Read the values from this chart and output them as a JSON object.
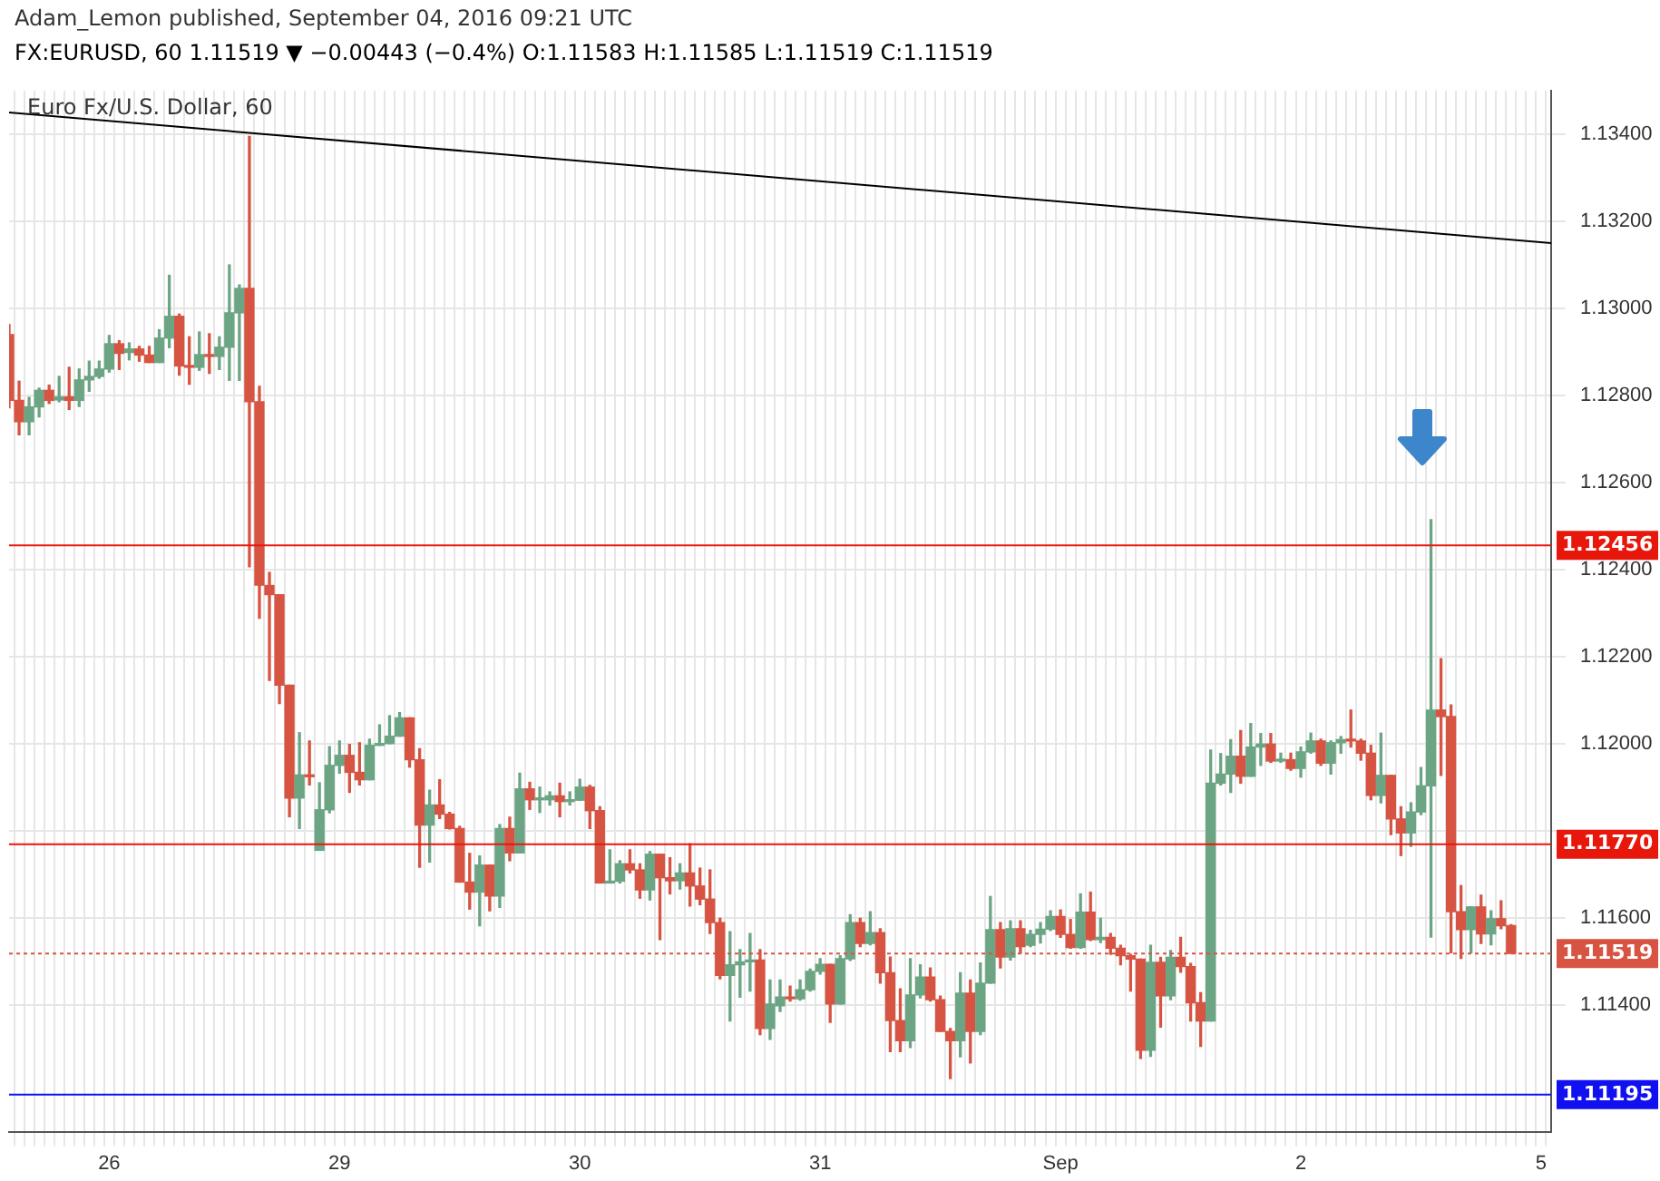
{
  "chart_data": {
    "type": "candlestick",
    "title": "FX:EURUSD, 60  1.11519 ▼ −0.00443 (−0.4%) O:1.11583 H:1.11585 L:1.11519 C:1.11519",
    "subtitle": "Adam_Lemon published, September 04, 2016 09:21 UTC",
    "annotations": [
      "Euro Fx/U.S. Dollar, 60"
    ],
    "categories": [
      null,
      null,
      null,
      null,
      null,
      null,
      null,
      null,
      null,
      null,
      "26",
      null,
      null,
      null,
      null,
      null,
      null,
      null,
      null,
      null,
      null,
      null,
      null,
      null,
      null,
      null,
      null,
      null,
      null,
      null,
      null,
      null,
      null,
      "29",
      null,
      null,
      null,
      null,
      null,
      null,
      null,
      null,
      null,
      null,
      null,
      null,
      null,
      null,
      null,
      null,
      null,
      null,
      null,
      null,
      null,
      null,
      null,
      "30",
      null,
      null,
      null,
      null,
      null,
      null,
      null,
      null,
      null,
      null,
      null,
      null,
      null,
      null,
      null,
      null,
      null,
      null,
      null,
      null,
      null,
      null,
      null,
      "31",
      null,
      null,
      null,
      null,
      null,
      null,
      null,
      null,
      null,
      null,
      null,
      null,
      null,
      null,
      null,
      null,
      null,
      null,
      null,
      null,
      null,
      null,
      null,
      "Sep",
      null,
      null,
      null,
      null,
      null,
      null,
      null,
      null,
      null,
      null,
      null,
      null,
      null,
      null,
      null,
      null,
      null,
      null,
      null,
      null,
      null,
      null,
      null,
      "2",
      null,
      null,
      null,
      null,
      null,
      null,
      null,
      null,
      null,
      null,
      null,
      null,
      null,
      null,
      null,
      null,
      null,
      null,
      null,
      null,
      null,
      null,
      null,
      "5",
      null
    ],
    "ohlc": [
      [
        1.1294,
        1.12963,
        1.12772,
        1.12789
      ],
      [
        1.12789,
        1.12833,
        1.1271,
        1.1274
      ],
      [
        1.1274,
        1.12796,
        1.1271,
        1.12774
      ],
      [
        1.12774,
        1.12817,
        1.12751,
        1.12812
      ],
      [
        1.12812,
        1.12824,
        1.12782,
        1.12789
      ],
      [
        1.1279,
        1.12844,
        1.12786,
        1.12797
      ],
      [
        1.12797,
        1.12865,
        1.12768,
        1.12789
      ],
      [
        1.12789,
        1.12861,
        1.12775,
        1.12836
      ],
      [
        1.12836,
        1.12879,
        1.1281,
        1.12844
      ],
      [
        1.12844,
        1.12879,
        1.1284,
        1.12861
      ],
      [
        1.12861,
        1.12938,
        1.12854,
        1.12919
      ],
      [
        1.12919,
        1.12926,
        1.1286,
        1.12897
      ],
      [
        1.12899,
        1.12921,
        1.12882,
        1.12907
      ],
      [
        1.12907,
        1.12913,
        1.12879,
        1.12893
      ],
      [
        1.12893,
        1.12913,
        1.12876,
        1.12876
      ],
      [
        1.12876,
        1.12951,
        1.12876,
        1.12932
      ],
      [
        1.12932,
        1.13076,
        1.1291,
        1.12982
      ],
      [
        1.12982,
        1.12987,
        1.12847,
        1.12868
      ],
      [
        1.12868,
        1.12935,
        1.12826,
        1.12865
      ],
      [
        1.12865,
        1.12946,
        1.12858,
        1.12894
      ],
      [
        1.12894,
        1.12942,
        1.12851,
        1.1289
      ],
      [
        1.1289,
        1.12935,
        1.1286,
        1.12911
      ],
      [
        1.12911,
        1.131,
        1.12835,
        1.1299
      ],
      [
        1.1299,
        1.13054,
        1.12835,
        1.13046
      ],
      [
        1.13046,
        1.13395,
        1.12407,
        1.12786
      ],
      [
        1.12786,
        1.12821,
        1.12289,
        1.12365
      ],
      [
        1.12364,
        1.12394,
        1.12146,
        1.12343
      ],
      [
        1.12343,
        1.12343,
        1.12093,
        1.12135
      ],
      [
        1.12135,
        1.12135,
        1.11833,
        1.11876
      ],
      [
        1.11876,
        1.12026,
        1.11806,
        1.11929
      ],
      [
        1.11929,
        1.12007,
        1.11906,
        1.11925
      ],
      [
        1.11756,
        1.11911,
        1.11756,
        1.11849
      ],
      [
        1.11849,
        1.11994,
        1.11842,
        1.11951
      ],
      [
        1.11951,
        1.12007,
        1.11933,
        1.11974
      ],
      [
        1.11974,
        1.11999,
        1.11889,
        1.11935
      ],
      [
        1.11935,
        1.12003,
        1.11906,
        1.11918
      ],
      [
        1.11918,
        1.12011,
        1.11918,
        1.11997
      ],
      [
        1.11997,
        1.12044,
        1.11997,
        1.12001
      ],
      [
        1.12001,
        1.12065,
        1.12001,
        1.12018
      ],
      [
        1.12018,
        1.12072,
        1.12018,
        1.1206
      ],
      [
        1.1206,
        1.1206,
        1.11947,
        1.11964
      ],
      [
        1.11964,
        1.11989,
        1.11717,
        1.11814
      ],
      [
        1.11814,
        1.11894,
        1.11729,
        1.1186
      ],
      [
        1.1186,
        1.11918,
        1.11829,
        1.11839
      ],
      [
        1.11839,
        1.11843,
        1.11805,
        1.11806
      ],
      [
        1.11806,
        1.11811,
        1.11683,
        1.11683
      ],
      [
        1.11683,
        1.11749,
        1.11621,
        1.1166
      ],
      [
        1.1166,
        1.11743,
        1.11583,
        1.11722
      ],
      [
        1.11722,
        1.11722,
        1.11617,
        1.11651
      ],
      [
        1.11651,
        1.11815,
        1.11625,
        1.11806
      ],
      [
        1.11806,
        1.11832,
        1.11732,
        1.1175
      ],
      [
        1.1175,
        1.11933,
        1.1175,
        1.11897
      ],
      [
        1.11897,
        1.11912,
        1.1185,
        1.11872
      ],
      [
        1.11872,
        1.11901,
        1.11843,
        1.11875
      ],
      [
        1.11872,
        1.1189,
        1.1186,
        1.11881
      ],
      [
        1.11881,
        1.1191,
        1.11833,
        1.11868
      ],
      [
        1.11868,
        1.1189,
        1.1186,
        1.11871
      ],
      [
        1.11871,
        1.11919,
        1.11871,
        1.11901
      ],
      [
        1.11901,
        1.11905,
        1.11806,
        1.11847
      ],
      [
        1.11847,
        1.11856,
        1.11681,
        1.11681
      ],
      [
        1.11681,
        1.11757,
        1.11681,
        1.11685
      ],
      [
        1.11685,
        1.11732,
        1.11681,
        1.11725
      ],
      [
        1.11725,
        1.11757,
        1.11704,
        1.11711
      ],
      [
        1.11711,
        1.11725,
        1.11646,
        1.11665
      ],
      [
        1.11665,
        1.11753,
        1.11642,
        1.11747
      ],
      [
        1.11747,
        1.11747,
        1.11551,
        1.11693
      ],
      [
        1.11693,
        1.11739,
        1.11656,
        1.11686
      ],
      [
        1.11686,
        1.11725,
        1.11667,
        1.11704
      ],
      [
        1.11704,
        1.11771,
        1.11628,
        1.11674
      ],
      [
        1.11674,
        1.11715,
        1.11631,
        1.11644
      ],
      [
        1.11644,
        1.11711,
        1.11565,
        1.1159
      ],
      [
        1.1159,
        1.116,
        1.11461,
        1.11469
      ],
      [
        1.11469,
        1.11569,
        1.11364,
        1.11493
      ],
      [
        1.11493,
        1.11528,
        1.11419,
        1.115
      ],
      [
        1.115,
        1.11565,
        1.11433,
        1.11504
      ],
      [
        1.11504,
        1.11528,
        1.11333,
        1.11347
      ],
      [
        1.11347,
        1.11458,
        1.11322,
        1.11403
      ],
      [
        1.11399,
        1.11458,
        1.11386,
        1.11419
      ],
      [
        1.11419,
        1.11444,
        1.1141,
        1.11415
      ],
      [
        1.11415,
        1.11458,
        1.11412,
        1.11436
      ],
      [
        1.11436,
        1.11483,
        1.11433,
        1.11478
      ],
      [
        1.11478,
        1.11507,
        1.11472,
        1.11494
      ],
      [
        1.11494,
        1.11494,
        1.11361,
        1.11403
      ],
      [
        1.11403,
        1.11514,
        1.11403,
        1.11507
      ],
      [
        1.11507,
        1.11608,
        1.11503,
        1.1159
      ],
      [
        1.1159,
        1.116,
        1.11535,
        1.11542
      ],
      [
        1.11542,
        1.11615,
        1.11539,
        1.11567
      ],
      [
        1.11567,
        1.11576,
        1.11451,
        1.11475
      ],
      [
        1.11475,
        1.11511,
        1.11294,
        1.11365
      ],
      [
        1.11365,
        1.11438,
        1.11294,
        1.11319
      ],
      [
        1.11319,
        1.11507,
        1.11303,
        1.11424
      ],
      [
        1.11424,
        1.11493,
        1.11417,
        1.11465
      ],
      [
        1.11465,
        1.11486,
        1.1141,
        1.11413
      ],
      [
        1.11413,
        1.11421,
        1.1134,
        1.1134
      ],
      [
        1.1134,
        1.11347,
        1.11232,
        1.11319
      ],
      [
        1.11319,
        1.11475,
        1.11282,
        1.11428
      ],
      [
        1.11428,
        1.11458,
        1.11268,
        1.1134
      ],
      [
        1.1134,
        1.11497,
        1.11333,
        1.11451
      ],
      [
        1.11451,
        1.1165,
        1.11451,
        1.11574
      ],
      [
        1.11574,
        1.1159,
        1.11486,
        1.11511
      ],
      [
        1.11511,
        1.11594,
        1.11504,
        1.11576
      ],
      [
        1.11576,
        1.11594,
        1.11521,
        1.11535
      ],
      [
        1.11538,
        1.11572,
        1.11535,
        1.11563
      ],
      [
        1.11563,
        1.1159,
        1.11543,
        1.11575
      ],
      [
        1.11575,
        1.11617,
        1.11572,
        1.11604
      ],
      [
        1.11604,
        1.11619,
        1.11556,
        1.11563
      ],
      [
        1.11563,
        1.11597,
        1.11531,
        1.11533
      ],
      [
        1.11533,
        1.11656,
        1.11531,
        1.11614
      ],
      [
        1.11614,
        1.1166,
        1.11549,
        1.11551
      ],
      [
        1.11551,
        1.116,
        1.11544,
        1.11556
      ],
      [
        1.11556,
        1.11565,
        1.11517,
        1.11531
      ],
      [
        1.11531,
        1.11538,
        1.11493,
        1.11514
      ],
      [
        1.11514,
        1.11517,
        1.11433,
        1.11506
      ],
      [
        1.11506,
        1.11506,
        1.11278,
        1.11297
      ],
      [
        1.11297,
        1.11538,
        1.11283,
        1.11499
      ],
      [
        1.11499,
        1.1151,
        1.1135,
        1.11422
      ],
      [
        1.11422,
        1.11526,
        1.11413,
        1.1151
      ],
      [
        1.1151,
        1.11556,
        1.11476,
        1.11489
      ],
      [
        1.11489,
        1.11496,
        1.11364,
        1.11406
      ],
      [
        1.11406,
        1.11429,
        1.11306,
        1.11364
      ],
      [
        1.11364,
        1.11986,
        1.11364,
        1.1191
      ],
      [
        1.1191,
        1.11978,
        1.11906,
        1.11931
      ],
      [
        1.11931,
        1.1201,
        1.11889,
        1.11972
      ],
      [
        1.11972,
        1.12031,
        1.1191,
        1.11926
      ],
      [
        1.11926,
        1.12047,
        1.11926,
        1.11993
      ],
      [
        1.11993,
        1.12024,
        1.11951,
        1.12
      ],
      [
        1.12,
        1.12024,
        1.11958,
        1.11961
      ],
      [
        1.11961,
        1.11979,
        1.11958,
        1.11964
      ],
      [
        1.11964,
        1.11979,
        1.1194,
        1.11944
      ],
      [
        1.11944,
        1.11993,
        1.11924,
        1.11982
      ],
      [
        1.11982,
        1.12025,
        1.11979,
        1.12007
      ],
      [
        1.12007,
        1.12011,
        1.11951,
        1.11956
      ],
      [
        1.11956,
        1.12007,
        1.11931,
        1.12003
      ],
      [
        1.12003,
        1.12017,
        1.11979,
        1.1201
      ],
      [
        1.1201,
        1.12078,
        1.11993,
        1.12007
      ],
      [
        1.12007,
        1.12011,
        1.11963,
        1.11979
      ],
      [
        1.11979,
        1.11997,
        1.11872,
        1.11882
      ],
      [
        1.11882,
        1.12025,
        1.11865,
        1.11928
      ],
      [
        1.11928,
        1.11928,
        1.11792,
        1.11828
      ],
      [
        1.11828,
        1.11856,
        1.11744,
        1.11796
      ],
      [
        1.11796,
        1.11865,
        1.11765,
        1.11844
      ],
      [
        1.11844,
        1.11946,
        1.11838,
        1.11904
      ],
      [
        1.11904,
        1.12515,
        1.11557,
        1.12078
      ],
      [
        1.12078,
        1.12196,
        1.11928,
        1.12063
      ],
      [
        1.12063,
        1.1209,
        1.11521,
        1.11615
      ],
      [
        1.11615,
        1.11675,
        1.11508,
        1.11574
      ],
      [
        1.11574,
        1.11626,
        1.11521,
        1.11626
      ],
      [
        1.11626,
        1.11653,
        1.11542,
        1.11564
      ],
      [
        1.11564,
        1.11617,
        1.11539,
        1.11599
      ],
      [
        1.11599,
        1.1164,
        1.11576,
        1.11583
      ],
      [
        1.11583,
        1.11585,
        1.11519,
        1.11519
      ],
      null,
      null,
      null,
      null
    ],
    "series": [
      {
        "type": "line",
        "color": "#000000",
        "values": [
          1.1345,
          null,
          null,
          null,
          null,
          null,
          null,
          null,
          null,
          null,
          null,
          null,
          null,
          null,
          null,
          null,
          null,
          null,
          null,
          null,
          null,
          null,
          null,
          null,
          null,
          null,
          null,
          null,
          null,
          null,
          null,
          null,
          null,
          null,
          null,
          null,
          null,
          null,
          null,
          null,
          null,
          null,
          null,
          null,
          null,
          null,
          null,
          null,
          null,
          null,
          null,
          null,
          null,
          null,
          null,
          null,
          null,
          null,
          null,
          null,
          null,
          null,
          null,
          null,
          null,
          null,
          null,
          null,
          null,
          null,
          null,
          null,
          null,
          null,
          null,
          null,
          null,
          null,
          null,
          null,
          null,
          null,
          null,
          null,
          null,
          null,
          null,
          null,
          null,
          null,
          null,
          null,
          null,
          null,
          null,
          null,
          null,
          null,
          null,
          null,
          null,
          null,
          null,
          null,
          null,
          null,
          null,
          null,
          null,
          null,
          null,
          null,
          null,
          null,
          null,
          null,
          null,
          null,
          null,
          null,
          null,
          null,
          null,
          null,
          null,
          null,
          null,
          null,
          null,
          null,
          null,
          null,
          null,
          null,
          null,
          null,
          null,
          null,
          null,
          null,
          null,
          null,
          null,
          null,
          null,
          null,
          null,
          null,
          null,
          null,
          null,
          null,
          null,
          null,
          1.1315
        ]
      }
    ],
    "ylim": [
      1.1111,
      1.135
    ],
    "yticks": [
      {
        "value": 1.114,
        "label": "1.11400"
      },
      {
        "value": 1.116,
        "label": "1.11600"
      },
      {
        "value": 1.118,
        "label": null
      },
      {
        "value": 1.12,
        "label": "1.12000"
      },
      {
        "value": 1.122,
        "label": "1.12200"
      },
      {
        "value": 1.124,
        "label": "1.12400"
      },
      {
        "value": 1.126,
        "label": "1.12600"
      },
      {
        "value": 1.128,
        "label": "1.12800"
      },
      {
        "value": 1.13,
        "label": "1.13000"
      },
      {
        "value": 1.132,
        "label": "1.13200"
      },
      {
        "value": 1.134,
        "label": "1.13400"
      }
    ],
    "ref_lines": [
      {
        "axis": "y",
        "value": 1.12456,
        "label": "1.12456",
        "color": "#e8170c",
        "line_style": "solid"
      },
      {
        "axis": "y",
        "value": 1.1177,
        "label": "1.11770",
        "color": "#e8170c",
        "line_style": "solid"
      },
      {
        "axis": "y",
        "value": 1.11519,
        "label": "1.11519",
        "color": "#d75442",
        "line_style": "dotted"
      },
      {
        "axis": "y",
        "value": 1.11195,
        "label": "1.11195",
        "color": "#1010f0",
        "line_style": "solid"
      }
    ],
    "grid": true,
    "legend": false
  }
}
